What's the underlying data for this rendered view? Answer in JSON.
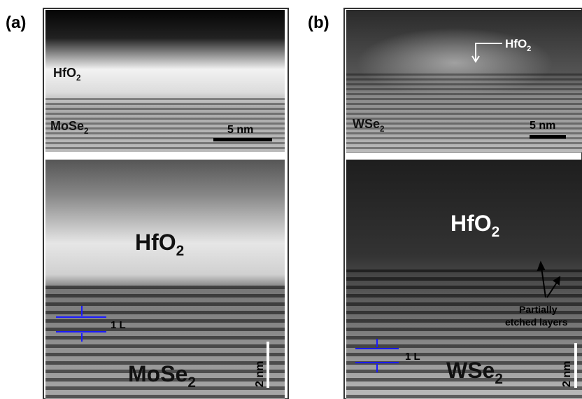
{
  "panels": [
    {
      "label": "(a)",
      "top": {
        "oxide": {
          "text": "HfO",
          "sub": "2"
        },
        "substrate": {
          "text": "MoSe",
          "sub": "2"
        },
        "scale_bar": "5 nm"
      },
      "bottom": {
        "oxide": {
          "text": "HfO",
          "sub": "2"
        },
        "substrate": {
          "text": "MoSe",
          "sub": "2"
        },
        "layer_label": "1 L",
        "scale_bar": "2 nm"
      }
    },
    {
      "label": "(b)",
      "top": {
        "oxide": {
          "text": "HfO",
          "sub": "2"
        },
        "substrate": {
          "text": "WSe",
          "sub": "2"
        },
        "scale_bar": "5 nm"
      },
      "bottom": {
        "oxide": {
          "text": "HfO",
          "sub": "2"
        },
        "substrate": {
          "text": "WSe",
          "sub": "2"
        },
        "layer_label": "1 L",
        "scale_bar": "2 nm",
        "annotation": [
          "Partially",
          "etched layers"
        ]
      }
    }
  ]
}
